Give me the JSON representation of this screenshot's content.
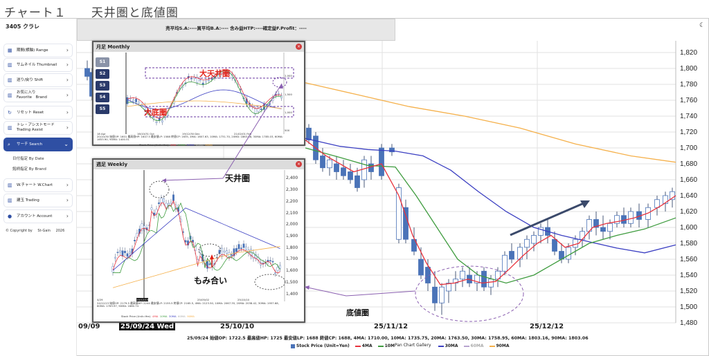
{
  "doc_title": "チャート１　　天井圏と底値圏",
  "app": {
    "brand": "3405 クラレ"
  },
  "sidebar": {
    "items": [
      {
        "label": "期間(横軸) Range",
        "icon": "calendar-icon"
      },
      {
        "label": "サムネイル Thumbnail",
        "icon": "chart-icon"
      },
      {
        "label": "送り/戻り Shift",
        "icon": "chart-icon"
      },
      {
        "label": "お気に入り",
        "label2": "Favorite　Brand",
        "icon": "chart-icon"
      },
      {
        "label": "リセット Reset",
        "icon": "refresh-icon"
      },
      {
        "label": "トレ・アシストモード",
        "label2": "Trading Assist",
        "icon": "chart-icon"
      },
      {
        "label": "サーチ Search",
        "icon": "search-icon"
      },
      {
        "label": "W.チャート W.Chart",
        "icon": "chart-icon"
      },
      {
        "label": "建玉 Trading",
        "icon": "chart-icon"
      },
      {
        "label": "アカウント Account",
        "icon": "user-icon"
      }
    ],
    "sub_items": [
      "日付指定 By Date",
      "銘柄指定 By Brand"
    ],
    "copyright": "© Copyright by",
    "copyright_brand": "St-Gain",
    "copyright_year": "2026"
  },
  "toolbar": {
    "text": "売平均S.A:----買平均B.A:---- 含み益HTP:----確定益F.Profit：----"
  },
  "main_chart": {
    "y_ticks": [
      "1,820",
      "1,800",
      "1,780",
      "1,760",
      "1,740",
      "1,720",
      "1,700",
      "1,680",
      "1,660",
      "1,640",
      "1,620",
      "1,600",
      "1,580",
      "1,560",
      "1,540",
      "1,520",
      "1,500",
      "1,480"
    ],
    "x_labels": [
      "09/09",
      "25/09/24 Wed",
      "25/10/10",
      "25/11/12",
      "25/12/12"
    ],
    "ohlc_text": "25/09/24 始値OP: 1722.5 最高値HP: 1725 最安値LP: 1688 終値CP: 1688, 4MA: 1710.00, 10MA: 1735.75, 20MA: 1763.50, 30MA: 1758.95, 60MA: 1803.16, 90MA: 1803.06",
    "legend": [
      "Stock Price (Unit=Yen)",
      "4MA",
      "10MA",
      "30MA",
      "60MA",
      "90MA"
    ],
    "gallery_label": "Pan Chart Gallery",
    "colors": {
      "candle": "#4a73b8",
      "ma4": "#e8323c",
      "ma10": "#3f9c3f",
      "ma30": "#3b3fc2",
      "ma60": "#b7a3cf",
      "ma90": "#f5b04a"
    }
  },
  "annotations": {
    "ceiling": "天井圏",
    "bottom": "底値圏",
    "range": "もみ合い"
  },
  "monthly_panel": {
    "title": "月足 Monthly",
    "buttons": [
      "S1",
      "S2",
      "S3",
      "S4",
      "S5"
    ],
    "ceiling_label": "大天井圏",
    "bottom_label": "大底圏",
    "y_ticks": [
      "2,000",
      "1,500",
      "1,000",
      "500"
    ],
    "x_labels": [
      "18 Apr",
      "16/10/31 Oct",
      "19/12/30 Dec",
      "21/02/01 Feb"
    ],
    "ohlc_line": "20/10/30 始値OP: 1601 最高値HP: 1647.5 最安値LP: 1588 終値CP: 1635, 4MA: 1607.63, 10MA: 1731.70, 20MA: 1863.88, 30MA: 1785.03, 60MA: 1653.90, 90MA: 1400.51",
    "legend": [
      "Stock Price (Unit=Yen)",
      "4MA",
      "10MA",
      "30MA",
      "60MA",
      "90MA"
    ]
  },
  "weekly_panel": {
    "title": "週足 Weekly",
    "buttons": [
      "S1",
      "S2",
      "S3",
      "S4",
      "S5"
    ],
    "y_ticks": [
      "2,400",
      "2,300",
      "2,200",
      "2,100",
      "2,000",
      "1,900",
      "1,800",
      "1,700",
      "1,600",
      "1,500",
      "1,400"
    ],
    "x_labels": [
      "4/29",
      "24/12/13",
      "25/05/02",
      "25/10/10"
    ],
    "ohlc_line": "24/12/13 始値OP: 2179.5 最高値HP: 2244 最安値LP: 2155.5 終値CP: 2165.5, 4MA: 2123.50, 10MA: 2067.35, 20MA: 2038.42, 30MA: 1957.68, 60MA: 1763.97, 90MA: 1680.74",
    "legend": [
      "Stock Price (Unit=Yen)",
      "4MA",
      "10MA",
      "30MA",
      "60MA",
      "90MA"
    ]
  }
}
